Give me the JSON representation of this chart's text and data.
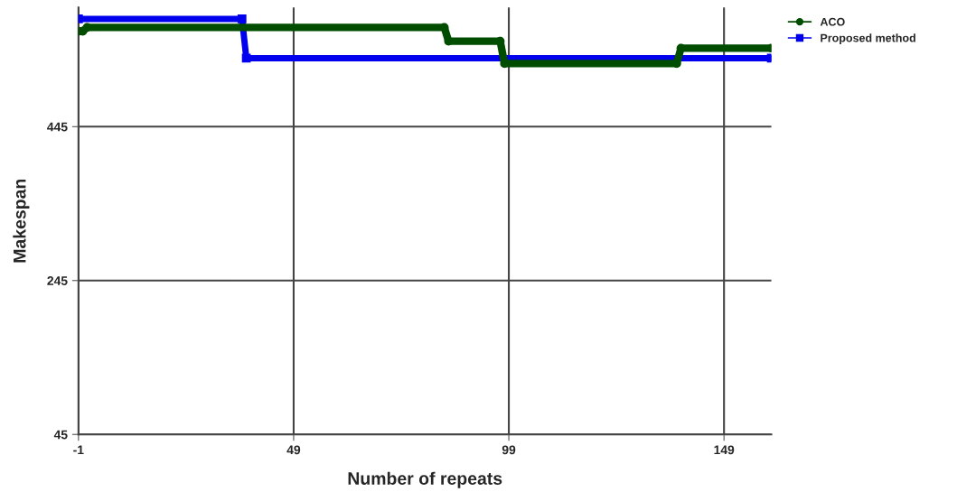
{
  "chart_data": {
    "type": "line",
    "xlabel": "Number of repeats",
    "ylabel": "Makespan",
    "xlim": [
      -1,
      160
    ],
    "ylim": [
      45,
      600
    ],
    "xticks": [
      -1,
      49,
      99,
      149
    ],
    "yticks": [
      45,
      245,
      445
    ],
    "grid": true,
    "legend": "top right",
    "series": [
      {
        "name": "ACO",
        "color": "#004d00",
        "marker": "circle",
        "x": [
          -1,
          0,
          1,
          84,
          85,
          97,
          98,
          138,
          139,
          160
        ],
        "values": [
          569,
          569,
          574,
          574,
          556,
          556,
          527,
          527,
          547,
          547
        ]
      },
      {
        "name": "Proposed method",
        "color": "#0000ee",
        "marker": "square",
        "x": [
          -1,
          37,
          38,
          160
        ],
        "values": [
          585,
          585,
          534,
          534
        ]
      }
    ]
  }
}
